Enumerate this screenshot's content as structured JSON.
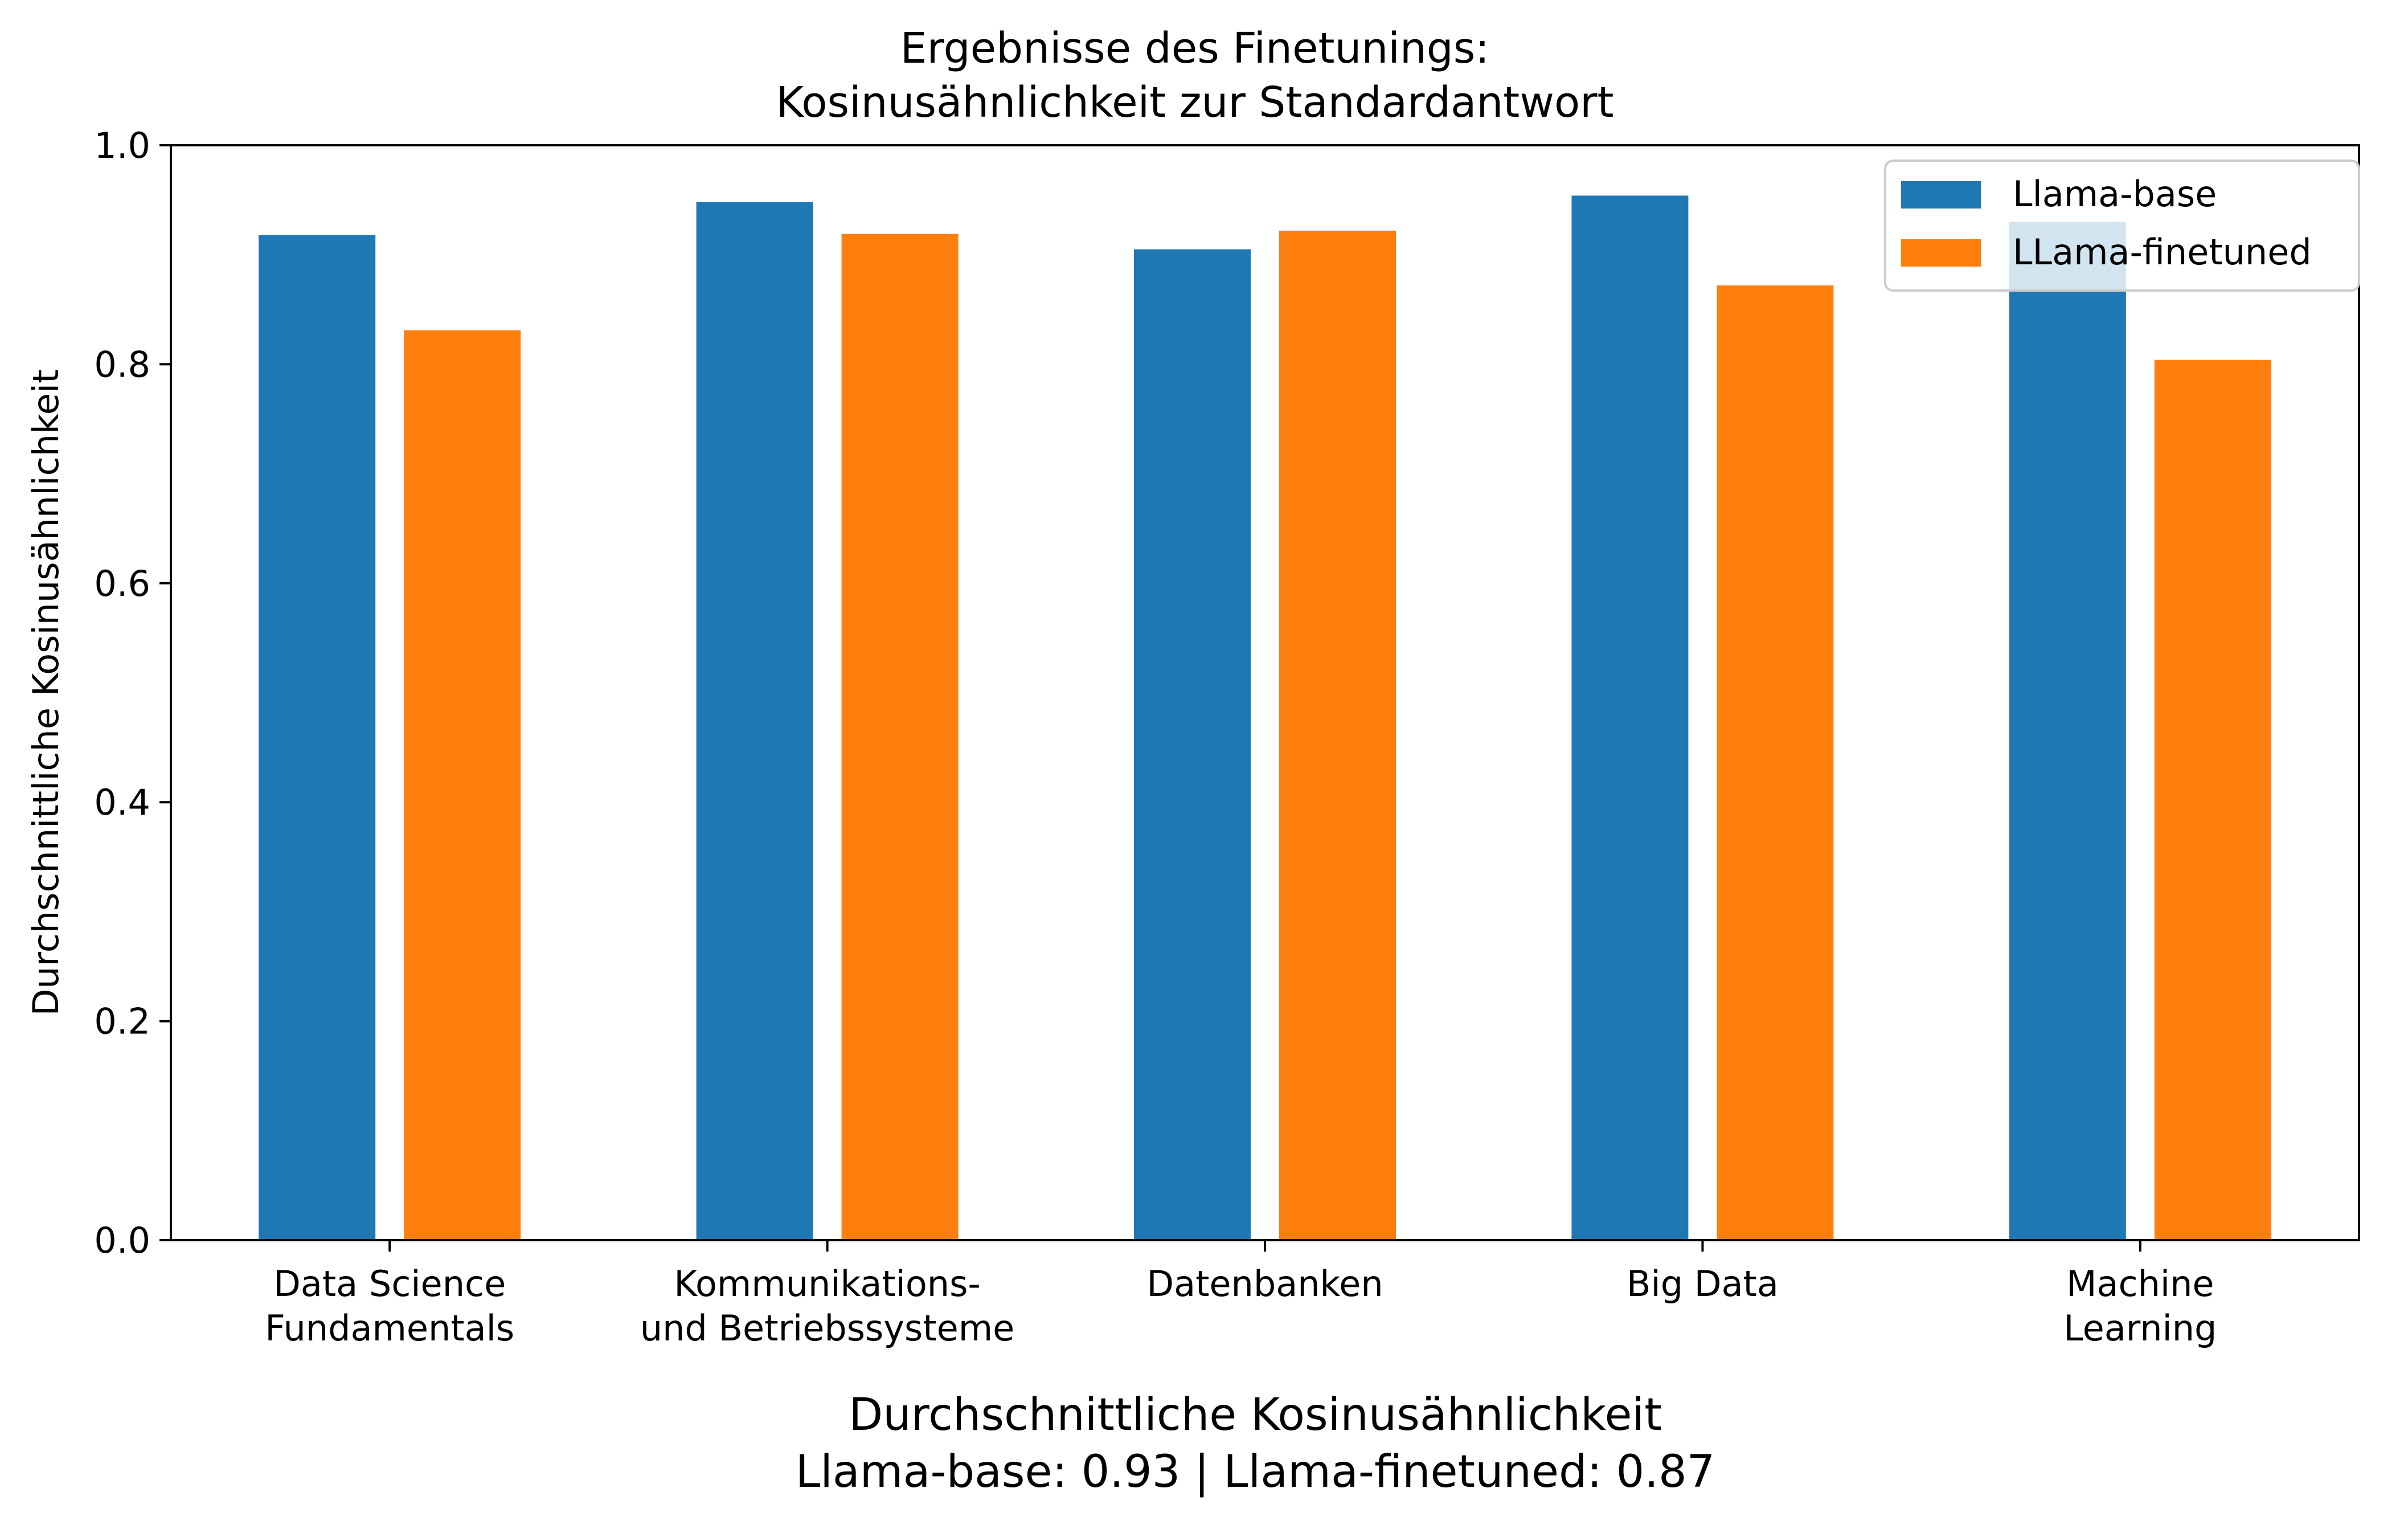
{
  "chart_data": {
    "type": "bar",
    "title": [
      "Ergebnisse des Finetunings:",
      "Kosinusähnlichkeit zur Standardantwort"
    ],
    "ylabel": "Durchschnittliche Kosinusähnlichkeit",
    "xlabel": [
      "Durchschnittliche Kosinusähnlichkeit",
      "Llama-base: 0.93 | Llama-finetuned: 0.87"
    ],
    "categories": [
      [
        "Data Science",
        "Fundamentals"
      ],
      [
        "Kommunikations-",
        "und Betriebssysteme"
      ],
      [
        "Datenbanken"
      ],
      [
        "Big Data"
      ],
      [
        "Machine",
        "Learning"
      ]
    ],
    "series": [
      {
        "name": "Llama-base",
        "color": "#1f77b4",
        "values": [
          0.918,
          0.948,
          0.905,
          0.954,
          0.93
        ]
      },
      {
        "name": "LLama-finetuned",
        "color": "#ff7f0e",
        "values": [
          0.831,
          0.919,
          0.922,
          0.872,
          0.804
        ]
      }
    ],
    "ylim": [
      0,
      1.0
    ],
    "yticks": [
      "0.0",
      "0.2",
      "0.4",
      "0.6",
      "0.8",
      "1.0"
    ],
    "grid": false,
    "legend_position": "top-right"
  }
}
